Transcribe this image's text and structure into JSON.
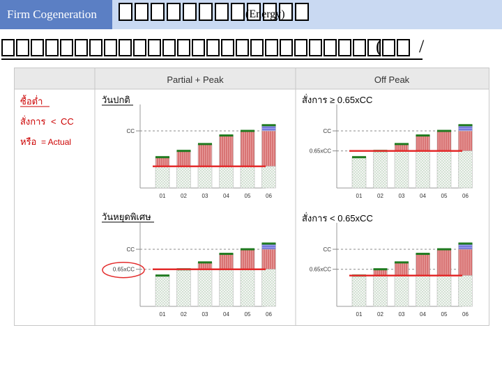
{
  "header": {
    "brand_tab": "Firm Cogeneration",
    "title_placeholder_count": 12,
    "title_energy": "(Energy)"
  },
  "subtitle": {
    "placeholder_count": 28
  },
  "figure": {
    "col_partial_peak": "Partial + Peak",
    "col_off_peak": "Off Peak",
    "left_heading": "ซื้อต่ำ",
    "left_condition_prefix": "สั่งการ",
    "left_condition_sym": "<",
    "left_condition_value": "CC",
    "left_or_prefix": "หรือ",
    "left_or_value": "= Actual",
    "normal_day_label": "วันปกติ",
    "holiday_label": "วันหยุดพิเศษ",
    "cond_ge": "สั่งการ ≥ 0.65xCC",
    "cond_lt": "สั่งการ < 0.65xCC",
    "cc_label": "CC",
    "pct_label": "0.65xCC",
    "x_labels": [
      "01",
      "02",
      "03",
      "04",
      "05",
      "06"
    ]
  },
  "chart_data": [
    {
      "type": "bar",
      "panel": "normal-day partial+peak",
      "categories": [
        "01",
        "02",
        "03",
        "04",
        "05",
        "06"
      ],
      "values": [
        0.54,
        0.65,
        0.77,
        0.92,
        1.0,
        1.1
      ],
      "reference_lines": {
        "CC": 1.0,
        "order": 0.38
      }
    },
    {
      "type": "bar",
      "panel": "normal-day off-peak",
      "categories": [
        "01",
        "02",
        "03",
        "04",
        "05",
        "06"
      ],
      "values": [
        0.54,
        0.65,
        0.77,
        0.92,
        1.0,
        1.1
      ],
      "reference_lines": {
        "CC": 1.0,
        "0.65xCC": 0.65,
        "order": 0.65
      }
    },
    {
      "type": "bar",
      "panel": "holiday partial+peak",
      "categories": [
        "01",
        "02",
        "03",
        "04",
        "05",
        "06"
      ],
      "values": [
        0.54,
        0.65,
        0.77,
        0.92,
        1.0,
        1.1
      ],
      "reference_lines": {
        "CC": 1.0,
        "0.65xCC": 0.65,
        "order": 0.65
      }
    },
    {
      "type": "bar",
      "panel": "holiday off-peak",
      "categories": [
        "01",
        "02",
        "03",
        "04",
        "05",
        "06"
      ],
      "values": [
        0.54,
        0.65,
        0.77,
        0.92,
        1.0,
        1.1
      ],
      "reference_lines": {
        "CC": 1.0,
        "0.65xCC": 0.65,
        "order": 0.54
      }
    }
  ],
  "colors": {
    "bar_fill": "#f2f2f2",
    "bar_dots": "#a6cba6",
    "bar_top": "#1f7a1f",
    "excess_red": "#d98a8a",
    "excess_blue": "#7f7fe0",
    "order_line": "#e32b2b",
    "highlight_circle": "#e32b2b"
  }
}
